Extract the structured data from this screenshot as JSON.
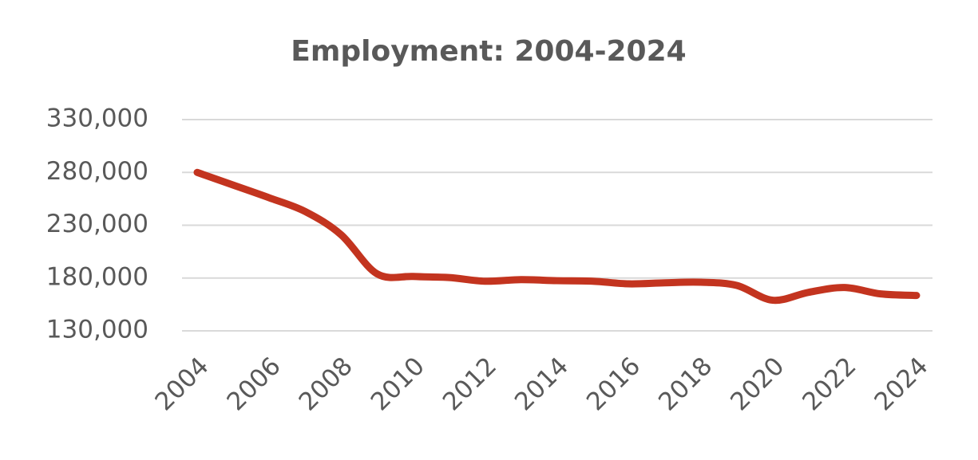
{
  "chart_data": {
    "type": "line",
    "title": "Employment: 2004-2024",
    "x": [
      2004,
      2005,
      2006,
      2007,
      2008,
      2009,
      2010,
      2011,
      2012,
      2013,
      2014,
      2015,
      2016,
      2017,
      2018,
      2019,
      2020,
      2021,
      2022,
      2023,
      2024
    ],
    "series": [
      {
        "name": "Employment",
        "color": "#c3341f",
        "values": [
          280000,
          268000,
          256000,
          243000,
          221000,
          184000,
          181500,
          180500,
          177000,
          178500,
          177500,
          177000,
          174500,
          175500,
          176000,
          173000,
          159000,
          166500,
          171000,
          165000,
          163500
        ]
      }
    ],
    "xlim": [
      2004,
      2024
    ],
    "xticks": [
      2004,
      2006,
      2008,
      2010,
      2012,
      2014,
      2016,
      2018,
      2020,
      2022,
      2024
    ],
    "ylim": [
      130000,
      330000
    ],
    "yticks": [
      {
        "value": 130000,
        "label": "130,000"
      },
      {
        "value": 180000,
        "label": "180,000"
      },
      {
        "value": 230000,
        "label": "230,000"
      },
      {
        "value": 280000,
        "label": "280,000"
      },
      {
        "value": 330000,
        "label": "330,000"
      }
    ],
    "grid": true
  }
}
